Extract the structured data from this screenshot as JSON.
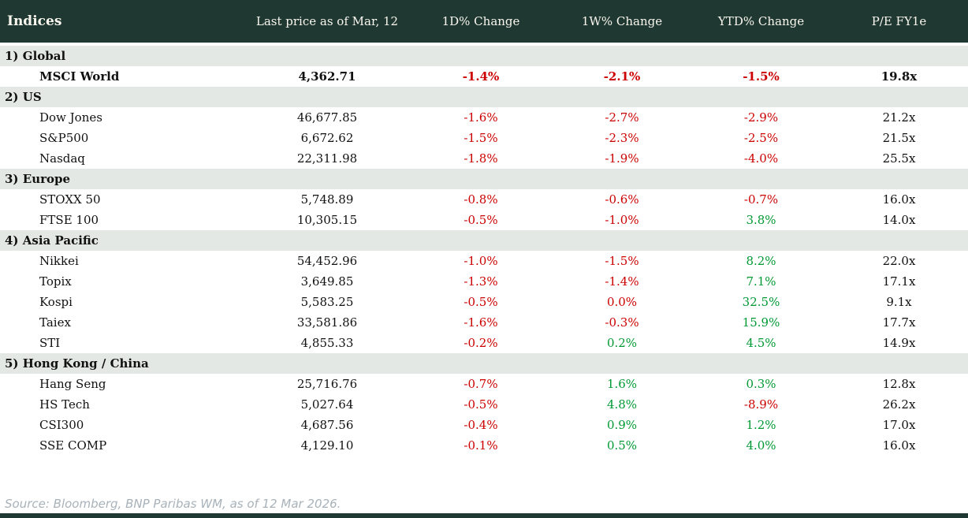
{
  "table": {
    "first_column_header": "Indices",
    "column_headers": [
      "Last price as of Mar, 12",
      "1D% Change",
      "1W% Change",
      "YTD% Change",
      "P/E FY1e"
    ],
    "sections": [
      {
        "label": "1) Global",
        "rows": [
          {
            "name": "MSCI World",
            "bold": true,
            "last_price": "4,362.71",
            "chg_1d": "-1.4%",
            "chg_1w": "-2.1%",
            "chg_ytd": "-1.5%",
            "pe_fy1e": "19.8x"
          }
        ]
      },
      {
        "label": "2) US",
        "rows": [
          {
            "name": "Dow Jones",
            "last_price": "46,677.85",
            "chg_1d": "-1.6%",
            "chg_1w": "-2.7%",
            "chg_ytd": "-2.9%",
            "pe_fy1e": "21.2x"
          },
          {
            "name": "S&P500",
            "last_price": "6,672.62",
            "chg_1d": "-1.5%",
            "chg_1w": "-2.3%",
            "chg_ytd": "-2.5%",
            "pe_fy1e": "21.5x"
          },
          {
            "name": "Nasdaq",
            "last_price": "22,311.98",
            "chg_1d": "-1.8%",
            "chg_1w": "-1.9%",
            "chg_ytd": "-4.0%",
            "pe_fy1e": "25.5x"
          }
        ]
      },
      {
        "label": "3) Europe",
        "rows": [
          {
            "name": "STOXX 50",
            "last_price": "5,748.89",
            "chg_1d": "-0.8%",
            "chg_1w": "-0.6%",
            "chg_ytd": "-0.7%",
            "pe_fy1e": "16.0x"
          },
          {
            "name": "FTSE 100",
            "last_price": "10,305.15",
            "chg_1d": "-0.5%",
            "chg_1w": "-1.0%",
            "chg_ytd": "3.8%",
            "pe_fy1e": "14.0x"
          }
        ]
      },
      {
        "label": "4) Asia Pacific",
        "rows": [
          {
            "name": "Nikkei",
            "last_price": "54,452.96",
            "chg_1d": "-1.0%",
            "chg_1w": "-1.5%",
            "chg_ytd": "8.2%",
            "pe_fy1e": "22.0x"
          },
          {
            "name": "Topix",
            "last_price": "3,649.85",
            "chg_1d": "-1.3%",
            "chg_1w": "-1.4%",
            "chg_ytd": "7.1%",
            "pe_fy1e": "17.1x"
          },
          {
            "name": "Kospi",
            "last_price": "5,583.25",
            "chg_1d": "-0.5%",
            "chg_1w": "0.0%",
            "chg_ytd": "32.5%",
            "pe_fy1e": "9.1x"
          },
          {
            "name": "Taiex",
            "last_price": "33,581.86",
            "chg_1d": "-1.6%",
            "chg_1w": "-0.3%",
            "chg_ytd": "15.9%",
            "pe_fy1e": "17.7x"
          },
          {
            "name": "STI",
            "last_price": "4,855.33",
            "chg_1d": "-0.2%",
            "chg_1w": "0.2%",
            "chg_ytd": "4.5%",
            "pe_fy1e": "14.9x"
          }
        ]
      },
      {
        "label": "5) Hong Kong / China",
        "rows": [
          {
            "name": "Hang Seng",
            "last_price": "25,716.76",
            "chg_1d": "-0.7%",
            "chg_1w": "1.6%",
            "chg_ytd": "0.3%",
            "pe_fy1e": "12.8x"
          },
          {
            "name": "HS Tech",
            "last_price": "5,027.64",
            "chg_1d": "-0.5%",
            "chg_1w": "4.8%",
            "chg_ytd": "-8.9%",
            "pe_fy1e": "26.2x"
          },
          {
            "name": "CSI300",
            "last_price": "4,687.56",
            "chg_1d": "-0.4%",
            "chg_1w": "0.9%",
            "chg_ytd": "1.2%",
            "pe_fy1e": "17.0x"
          },
          {
            "name": "SSE COMP",
            "last_price": "4,129.10",
            "chg_1d": "-0.1%",
            "chg_1w": "0.5%",
            "chg_ytd": "4.0%",
            "pe_fy1e": "16.0x"
          }
        ]
      }
    ]
  },
  "footer": {
    "source_note": "Source: Bloomberg, BNP Paribas WM, as of 12 Mar 2026."
  },
  "colors": {
    "header_bg": "#203832",
    "header_text": "#f8f6ee",
    "section_row_bg": "#e3e8e4",
    "negative": "#cc0000",
    "positive": "#009933",
    "source_text": "#a8b2ba",
    "bottom_bar": "#203832"
  }
}
